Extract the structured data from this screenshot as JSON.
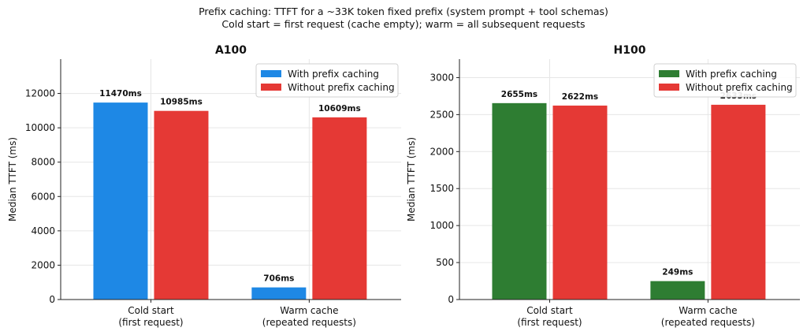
{
  "figure": {
    "title_line1": "Prefix caching: TTFT for a ~33K token fixed prefix (system prompt + tool schemas)",
    "title_line2": "Cold start = first request (cache empty); warm = all subsequent requests"
  },
  "chart_data": [
    {
      "type": "bar",
      "title": "A100",
      "ylabel": "Median TTFT (ms)",
      "xlabel": "",
      "ylim": [
        0,
        14000
      ],
      "yticks": [
        0,
        2000,
        4000,
        6000,
        8000,
        10000,
        12000
      ],
      "grid": true,
      "legend_position": "top-right",
      "categories": [
        [
          "Cold start",
          "(first request)"
        ],
        [
          "Warm cache",
          "(repeated requests)"
        ]
      ],
      "series": [
        {
          "name": "With prefix caching",
          "color": "#1e88e5",
          "values": [
            11470,
            706
          ],
          "labels": [
            "11470ms",
            "706ms"
          ]
        },
        {
          "name": "Without prefix caching",
          "color": "#e53935",
          "values": [
            10985,
            10609
          ],
          "labels": [
            "10985ms",
            "10609ms"
          ]
        }
      ]
    },
    {
      "type": "bar",
      "title": "H100",
      "ylabel": "Median TTFT (ms)",
      "xlabel": "",
      "ylim": [
        0,
        3250
      ],
      "yticks": [
        0,
        500,
        1000,
        1500,
        2000,
        2500,
        3000
      ],
      "grid": true,
      "legend_position": "top-right",
      "categories": [
        [
          "Cold start",
          "(first request)"
        ],
        [
          "Warm cache",
          "(repeated requests)"
        ]
      ],
      "series": [
        {
          "name": "With prefix caching",
          "color": "#2e7d32",
          "values": [
            2655,
            249
          ],
          "labels": [
            "2655ms",
            "249ms"
          ]
        },
        {
          "name": "Without prefix caching",
          "color": "#e53935",
          "values": [
            2622,
            2633
          ],
          "labels": [
            "2622ms",
            "2633ms"
          ]
        }
      ]
    }
  ]
}
